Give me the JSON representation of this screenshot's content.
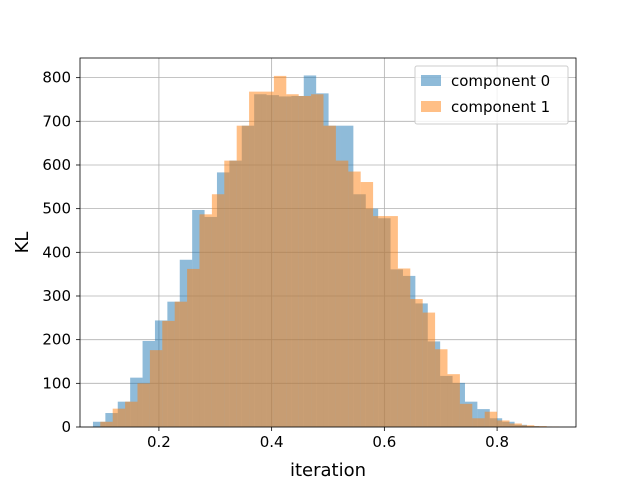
{
  "chart_data": {
    "type": "histogram",
    "xlabel": "iteration",
    "ylabel": "KL",
    "xlim": [
      0.06,
      0.94
    ],
    "ylim": [
      0,
      845
    ],
    "xticks": [
      0.2,
      0.4,
      0.6,
      0.8
    ],
    "yticks": [
      0,
      100,
      200,
      300,
      400,
      500,
      600,
      700,
      800
    ],
    "grid": true,
    "legend_position": "top-right",
    "alpha": 0.5,
    "series": [
      {
        "name": "component 0",
        "color": "#1f77b4",
        "bin_edges": [
          0.083,
          0.105,
          0.127,
          0.149,
          0.171,
          0.193,
          0.215,
          0.237,
          0.259,
          0.281,
          0.303,
          0.325,
          0.347,
          0.369,
          0.391,
          0.413,
          0.435,
          0.457,
          0.479,
          0.501,
          0.523,
          0.545,
          0.567,
          0.589,
          0.611,
          0.633,
          0.655,
          0.677,
          0.699,
          0.721,
          0.743,
          0.765,
          0.787,
          0.809,
          0.831,
          0.853,
          0.875,
          0.897
        ],
        "counts": [
          12,
          32,
          58,
          113,
          197,
          244,
          287,
          383,
          497,
          481,
          583,
          610,
          690,
          762,
          760,
          757,
          758,
          805,
          764,
          690,
          690,
          533,
          500,
          478,
          361,
          346,
          283,
          196,
          117,
          101,
          58,
          41,
          20,
          12,
          5,
          2,
          1
        ]
      },
      {
        "name": "component 1",
        "color": "#ff7f0e",
        "bin_edges": [
          0.096,
          0.118,
          0.14,
          0.162,
          0.184,
          0.206,
          0.228,
          0.25,
          0.272,
          0.294,
          0.316,
          0.338,
          0.36,
          0.382,
          0.404,
          0.426,
          0.448,
          0.47,
          0.492,
          0.514,
          0.536,
          0.558,
          0.58,
          0.602,
          0.624,
          0.646,
          0.668,
          0.69,
          0.712,
          0.734,
          0.756,
          0.778,
          0.8,
          0.822,
          0.844,
          0.866,
          0.888,
          0.91
        ],
        "counts": [
          12,
          42,
          58,
          100,
          176,
          243,
          287,
          362,
          487,
          533,
          610,
          690,
          768,
          768,
          804,
          762,
          758,
          762,
          690,
          610,
          585,
          561,
          483,
          483,
          363,
          293,
          262,
          178,
          121,
          53,
          20,
          35,
          15,
          8,
          4,
          2,
          1
        ]
      }
    ]
  }
}
